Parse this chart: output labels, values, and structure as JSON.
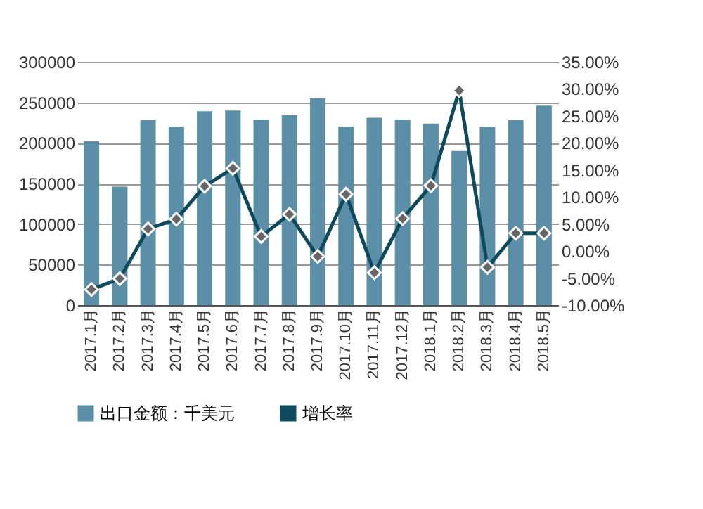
{
  "chart_data": {
    "type": "bar",
    "categories": [
      "2017.1月",
      "2017.2月",
      "2017.3月",
      "2017.4月",
      "2017.5月",
      "2017.6月",
      "2017.7月",
      "2017.8月",
      "2017.9月",
      "2017.10月",
      "2017.11月",
      "2017.12月",
      "2018.1月",
      "2018.2月",
      "2018.3月",
      "2018.4月",
      "2018.5月"
    ],
    "series": [
      {
        "name": "出口金额：千美元",
        "color": "#5b8fa8",
        "values": [
          202000,
          146000,
          228000,
          220000,
          239000,
          240000,
          229000,
          234000,
          255000,
          220000,
          231000,
          229000,
          224000,
          190000,
          220000,
          228000,
          246000
        ]
      },
      {
        "name": "增长率",
        "type": "line",
        "axis": "y2",
        "color": "#0e4a5e",
        "values": [
          -7.1,
          -5.1,
          4.1,
          5.9,
          12.0,
          15.3,
          2.7,
          6.8,
          -1.0,
          10.5,
          -4.0,
          6.0,
          12.1,
          29.7,
          -3.0,
          3.3,
          3.3
        ]
      }
    ],
    "ylim": [
      0,
      300000
    ],
    "yticks": [
      0,
      50000,
      100000,
      150000,
      200000,
      250000,
      300000
    ],
    "y2lim": [
      -10,
      35
    ],
    "y2ticks": [
      {
        "value": -10,
        "label": "-10.00%"
      },
      {
        "value": -5,
        "label": "-5.00%"
      },
      {
        "value": 0,
        "label": "0.00%"
      },
      {
        "value": 5,
        "label": "5.00%"
      },
      {
        "value": 10,
        "label": "10.00%"
      },
      {
        "value": 15,
        "label": "15.00%"
      },
      {
        "value": 20,
        "label": "20.00%"
      },
      {
        "value": 25,
        "label": "25.00%"
      },
      {
        "value": 30,
        "label": "30.00%"
      },
      {
        "value": 35,
        "label": "35.00%"
      }
    ],
    "grid": "y",
    "legend": "bottom",
    "marker": "diamond",
    "line_style": "solid"
  }
}
